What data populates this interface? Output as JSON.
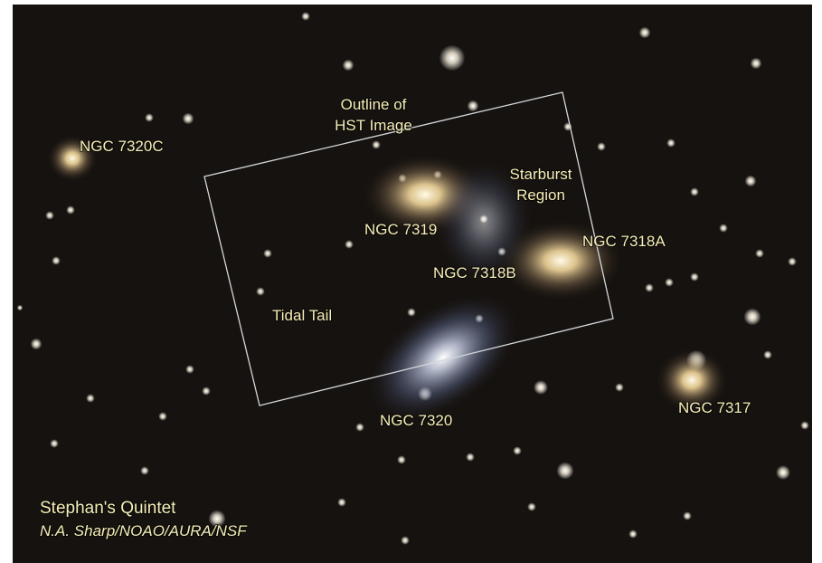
{
  "image": {
    "title": "Stephan's Quintet",
    "credit": "N.A. Sharp/NOAO/AURA/NSF",
    "labels": [
      {
        "lines": [
          "Outline of",
          "HST Image"
        ]
      },
      {
        "lines": [
          "NGC 7320C"
        ]
      },
      {
        "lines": [
          "Starburst",
          "Region"
        ]
      },
      {
        "lines": [
          "NGC 7319"
        ]
      },
      {
        "lines": [
          "NGC 7318A"
        ]
      },
      {
        "lines": [
          "NGC 7318B"
        ]
      },
      {
        "lines": [
          "Tidal Tail"
        ]
      },
      {
        "lines": [
          "NGC 7320"
        ]
      },
      {
        "lines": [
          "NGC 7317"
        ]
      }
    ]
  }
}
